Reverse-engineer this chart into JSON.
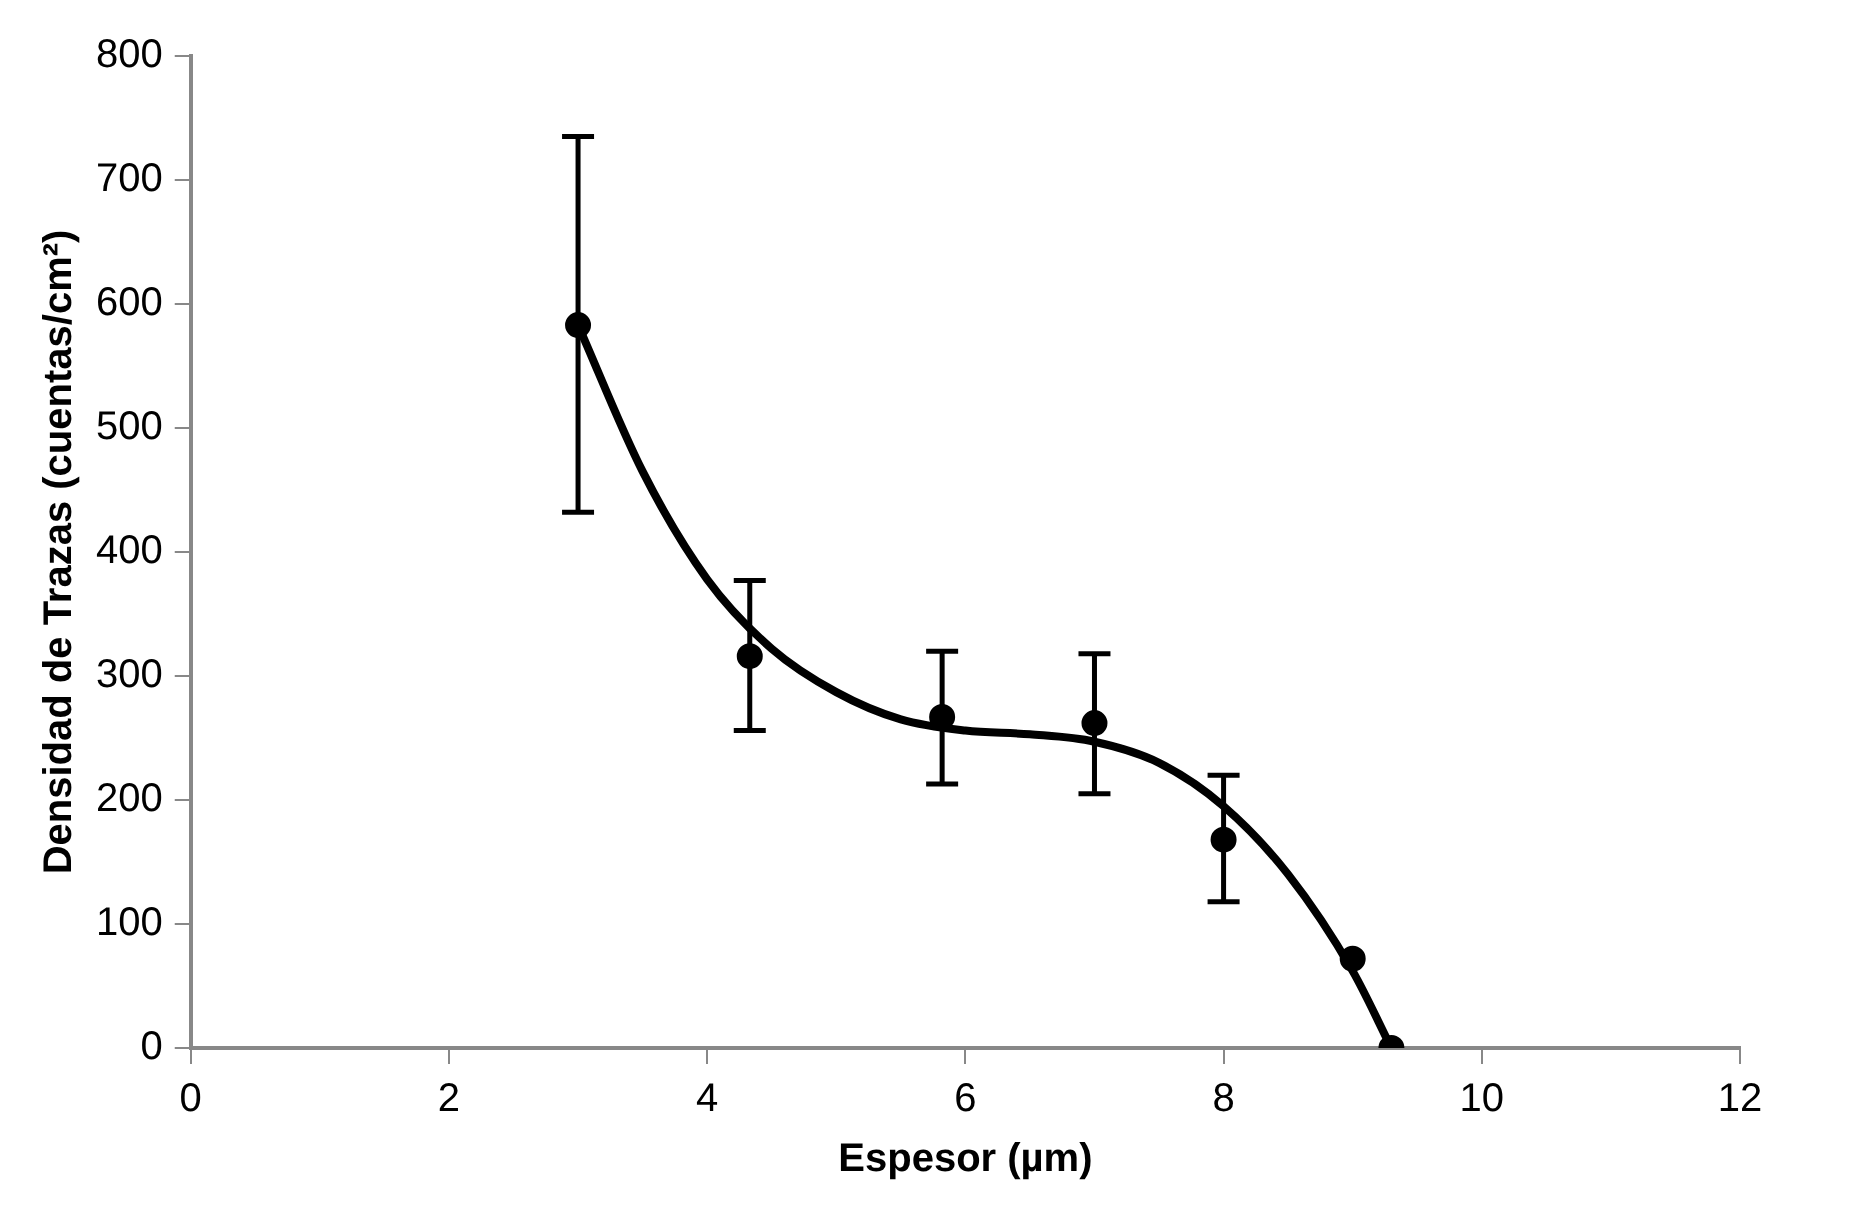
{
  "chart_data": {
    "type": "scatter",
    "xlabel": "Espesor (µm)",
    "ylabel": "Densidad de Trazas (cuentas/cm²)",
    "xlim": [
      0,
      12
    ],
    "xticks": [
      0,
      2,
      4,
      6,
      8,
      10,
      12
    ],
    "ylim": [
      0,
      800
    ],
    "yticks": [
      0,
      100,
      200,
      300,
      400,
      500,
      600,
      700,
      800
    ],
    "grid": false,
    "legend": false,
    "marker": "circle",
    "series": [
      {
        "color": "#000000",
        "x": [
          3,
          4.33,
          5.82,
          7,
          8,
          9,
          9.3
        ],
        "values": [
          583,
          316,
          267,
          262,
          168,
          72,
          0
        ],
        "errors": [
          [
            432,
            735
          ],
          [
            256,
            377
          ],
          [
            213,
            320
          ],
          [
            205,
            318
          ],
          [
            118,
            220
          ],
          null,
          null
        ]
      },
      {
        "type": "line",
        "color": "#000000",
        "marker": "none",
        "line_style": "solid",
        "x": [
          3,
          3.5,
          4,
          4.5,
          5,
          5.5,
          6,
          6.5,
          7,
          7.5,
          8,
          8.5,
          9,
          9.3
        ],
        "values": [
          583,
          465,
          378,
          322,
          287,
          265,
          256,
          253,
          247,
          230,
          195,
          140,
          62,
          0
        ]
      }
    ]
  }
}
